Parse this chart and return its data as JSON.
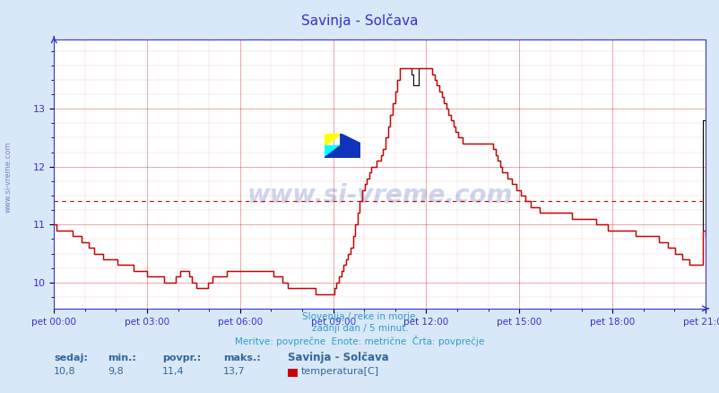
{
  "title": "Savinja - Solčava",
  "bg_color": "#d8e8f8",
  "plot_bg_color": "#ffffff",
  "line_color": "#cc0000",
  "line2_color": "#000000",
  "avg_line_color": "#cc0000",
  "avg_value": 11.4,
  "ylim": [
    9.55,
    14.2
  ],
  "yticks": [
    10,
    11,
    12,
    13
  ],
  "xlabel_ticks": [
    "pet 00:00",
    "pet 03:00",
    "pet 06:00",
    "pet 09:00",
    "pet 12:00",
    "pet 15:00",
    "pet 18:00",
    "pet 21:00"
  ],
  "footer_line1": "Slovenija / reke in morje.",
  "footer_line2": "zadnji dan / 5 minut.",
  "footer_line3": "Meritve: povprečne  Enote: metrične  Črta: povprečje",
  "legend_title": "Savinja - Solčava",
  "legend_label": "temperatura[C]",
  "stat_sedaj": "10,8",
  "stat_min": "9,8",
  "stat_povpr": "11,4",
  "stat_maks": "13,7",
  "watermark": "www.si-vreme.com",
  "side_text": "www.si-vreme.com",
  "title_color": "#3333cc",
  "axis_color": "#3333cc",
  "footer_color": "#3399cc",
  "stat_label_color": "#336699",
  "stat_value_color": "#336699",
  "grid_color": "#cc0000",
  "temperatures": [
    11.0,
    10.9,
    10.9,
    10.9,
    10.9,
    10.9,
    10.9,
    10.9,
    10.8,
    10.8,
    10.8,
    10.8,
    10.7,
    10.7,
    10.7,
    10.6,
    10.6,
    10.5,
    10.5,
    10.5,
    10.5,
    10.4,
    10.4,
    10.4,
    10.4,
    10.4,
    10.4,
    10.3,
    10.3,
    10.3,
    10.3,
    10.3,
    10.3,
    10.3,
    10.2,
    10.2,
    10.2,
    10.2,
    10.2,
    10.2,
    10.1,
    10.1,
    10.1,
    10.1,
    10.1,
    10.1,
    10.1,
    10.0,
    10.0,
    10.0,
    10.0,
    10.0,
    10.1,
    10.1,
    10.2,
    10.2,
    10.2,
    10.2,
    10.1,
    10.0,
    10.0,
    9.9,
    9.9,
    9.9,
    9.9,
    9.9,
    10.0,
    10.0,
    10.1,
    10.1,
    10.1,
    10.1,
    10.1,
    10.1,
    10.2,
    10.2,
    10.2,
    10.2,
    10.2,
    10.2,
    10.2,
    10.2,
    10.2,
    10.2,
    10.2,
    10.2,
    10.2,
    10.2,
    10.2,
    10.2,
    10.2,
    10.2,
    10.2,
    10.2,
    10.1,
    10.1,
    10.1,
    10.1,
    10.0,
    10.0,
    9.9,
    9.9,
    9.9,
    9.9,
    9.9,
    9.9,
    9.9,
    9.9,
    9.9,
    9.9,
    9.9,
    9.9,
    9.8,
    9.8,
    9.8,
    9.8,
    9.8,
    9.8,
    9.8,
    9.8,
    9.9,
    10.0,
    10.1,
    10.2,
    10.3,
    10.4,
    10.5,
    10.6,
    10.8,
    11.0,
    11.2,
    11.4,
    11.6,
    11.7,
    11.8,
    11.9,
    12.0,
    12.0,
    12.1,
    12.1,
    12.2,
    12.3,
    12.5,
    12.7,
    12.9,
    13.1,
    13.3,
    13.5,
    13.7,
    13.7,
    13.7,
    13.7,
    13.7,
    13.7,
    13.7,
    13.7,
    13.7,
    13.7,
    13.7,
    13.7,
    13.7,
    13.7,
    13.6,
    13.5,
    13.4,
    13.3,
    13.2,
    13.1,
    13.0,
    12.9,
    12.8,
    12.7,
    12.6,
    12.5,
    12.5,
    12.4,
    12.4,
    12.4,
    12.4,
    12.4,
    12.4,
    12.4,
    12.4,
    12.4,
    12.4,
    12.4,
    12.4,
    12.4,
    12.3,
    12.2,
    12.1,
    12.0,
    11.9,
    11.9,
    11.8,
    11.8,
    11.7,
    11.7,
    11.6,
    11.6,
    11.5,
    11.5,
    11.4,
    11.4,
    11.3,
    11.3,
    11.3,
    11.3,
    11.2,
    11.2,
    11.2,
    11.2,
    11.2,
    11.2,
    11.2,
    11.2,
    11.2,
    11.2,
    11.2,
    11.2,
    11.2,
    11.2,
    11.1,
    11.1,
    11.1,
    11.1,
    11.1,
    11.1,
    11.1,
    11.1,
    11.1,
    11.1,
    11.0,
    11.0,
    11.0,
    11.0,
    11.0,
    10.9,
    10.9,
    10.9,
    10.9,
    10.9,
    10.9,
    10.9,
    10.9,
    10.9,
    10.9,
    10.9,
    10.9,
    10.8,
    10.8,
    10.8,
    10.8,
    10.8,
    10.8,
    10.8,
    10.8,
    10.8,
    10.8,
    10.7,
    10.7,
    10.7,
    10.7,
    10.6,
    10.6,
    10.6,
    10.5,
    10.5,
    10.5,
    10.4,
    10.4,
    10.4,
    10.3,
    10.3,
    10.3,
    10.3,
    10.3,
    10.3,
    10.9,
    10.8
  ],
  "temperatures2": [
    11.0,
    10.9,
    10.9,
    10.9,
    10.9,
    10.9,
    10.9,
    10.9,
    10.8,
    10.8,
    10.8,
    10.8,
    10.7,
    10.7,
    10.7,
    10.6,
    10.6,
    10.5,
    10.5,
    10.5,
    10.5,
    10.4,
    10.4,
    10.4,
    10.4,
    10.4,
    10.4,
    10.3,
    10.3,
    10.3,
    10.3,
    10.3,
    10.3,
    10.3,
    10.2,
    10.2,
    10.2,
    10.2,
    10.2,
    10.2,
    10.1,
    10.1,
    10.1,
    10.1,
    10.1,
    10.1,
    10.1,
    10.0,
    10.0,
    10.0,
    10.0,
    10.0,
    10.1,
    10.1,
    10.2,
    10.2,
    10.2,
    10.2,
    10.1,
    10.0,
    10.0,
    9.9,
    9.9,
    9.9,
    9.9,
    9.9,
    10.0,
    10.0,
    10.1,
    10.1,
    10.1,
    10.1,
    10.1,
    10.1,
    10.2,
    10.2,
    10.2,
    10.2,
    10.2,
    10.2,
    10.2,
    10.2,
    10.2,
    10.2,
    10.2,
    10.2,
    10.2,
    10.2,
    10.2,
    10.2,
    10.2,
    10.2,
    10.2,
    10.2,
    10.1,
    10.1,
    10.1,
    10.1,
    10.0,
    10.0,
    9.9,
    9.9,
    9.9,
    9.9,
    9.9,
    9.9,
    9.9,
    9.9,
    9.9,
    9.9,
    9.9,
    9.9,
    9.8,
    9.8,
    9.8,
    9.8,
    9.8,
    9.8,
    9.8,
    9.8,
    9.9,
    10.0,
    10.1,
    10.2,
    10.3,
    10.4,
    10.5,
    10.6,
    10.8,
    11.0,
    11.2,
    11.4,
    11.6,
    11.7,
    11.8,
    11.9,
    12.0,
    12.0,
    12.1,
    12.1,
    12.2,
    12.3,
    12.5,
    12.7,
    12.9,
    13.1,
    13.3,
    13.5,
    13.7,
    13.7,
    13.7,
    13.7,
    13.7,
    13.6,
    13.4,
    13.4,
    13.7,
    13.7,
    13.7,
    13.7,
    13.7,
    13.7,
    13.6,
    13.5,
    13.4,
    13.3,
    13.2,
    13.1,
    13.0,
    12.9,
    12.8,
    12.7,
    12.6,
    12.5,
    12.5,
    12.4,
    12.4,
    12.4,
    12.4,
    12.4,
    12.4,
    12.4,
    12.4,
    12.4,
    12.4,
    12.4,
    12.4,
    12.4,
    12.3,
    12.2,
    12.1,
    12.0,
    11.9,
    11.9,
    11.8,
    11.8,
    11.7,
    11.7,
    11.6,
    11.6,
    11.5,
    11.5,
    11.4,
    11.4,
    11.3,
    11.3,
    11.3,
    11.3,
    11.2,
    11.2,
    11.2,
    11.2,
    11.2,
    11.2,
    11.2,
    11.2,
    11.2,
    11.2,
    11.2,
    11.2,
    11.2,
    11.2,
    11.1,
    11.1,
    11.1,
    11.1,
    11.1,
    11.1,
    11.1,
    11.1,
    11.1,
    11.1,
    11.0,
    11.0,
    11.0,
    11.0,
    11.0,
    10.9,
    10.9,
    10.9,
    10.9,
    10.9,
    10.9,
    10.9,
    10.9,
    10.9,
    10.9,
    10.9,
    10.9,
    10.8,
    10.8,
    10.8,
    10.8,
    10.8,
    10.8,
    10.8,
    10.8,
    10.8,
    10.8,
    10.7,
    10.7,
    10.7,
    10.7,
    10.6,
    10.6,
    10.6,
    10.5,
    10.5,
    10.5,
    10.4,
    10.4,
    10.4,
    10.3,
    10.3,
    10.3,
    10.3,
    10.3,
    10.3,
    12.8,
    10.8
  ]
}
